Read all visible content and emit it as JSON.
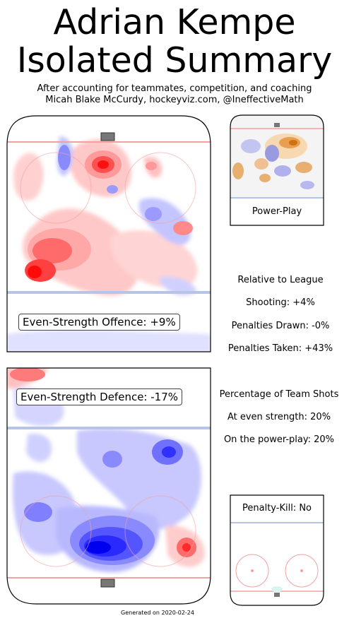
{
  "title_line1": "Adrian Kempe",
  "title_line2": "Isolated Summary",
  "subtitle_line1": "After accounting for teammates, competition, and coaching",
  "subtitle_line2": "Micah Blake McCurdy, hockeyviz.com, @IneffectiveMath",
  "panels": {
    "offence_label": "Even-Strength Offence: +9%",
    "defence_label": "Even-Strength Defence: -17%",
    "powerplay_label": "Power-Play",
    "penaltykill_label": "Penalty-Kill: No"
  },
  "relative": {
    "heading": "Relative to League",
    "shooting": "Shooting: +4%",
    "penalties_drawn": "Penalties Drawn: -0%",
    "penalties_taken": "Penalties Taken: +43%"
  },
  "team_shots": {
    "heading": "Percentage of Team Shots",
    "even_strength": "At even strength: 20%",
    "power_play": "On the power-play: 20%"
  },
  "footer": "Generated on 2020-02-24",
  "colors": {
    "more_shots": "#ff2020",
    "fewer_shots": "#2020ff",
    "pp_more": "#e08a20",
    "pp_fewer": "#6a6ad8",
    "rink_red": "#f4a0a0",
    "rink_blue": "#b8c4e6"
  },
  "chart_data": {
    "type": "heatmap",
    "panels": [
      {
        "name": "Even-Strength Offence",
        "value_pct": 9
      },
      {
        "name": "Even-Strength Defence",
        "value_pct": -17
      },
      {
        "name": "Power-Play",
        "value_pct": null
      },
      {
        "name": "Penalty-Kill",
        "value_pct": null
      }
    ],
    "relative_to_league": {
      "shooting_pct": 4,
      "penalties_drawn_pct": 0,
      "penalties_taken_pct": 43
    },
    "team_shot_share": {
      "even_strength_pct": 20,
      "power_play_pct": 20
    }
  }
}
